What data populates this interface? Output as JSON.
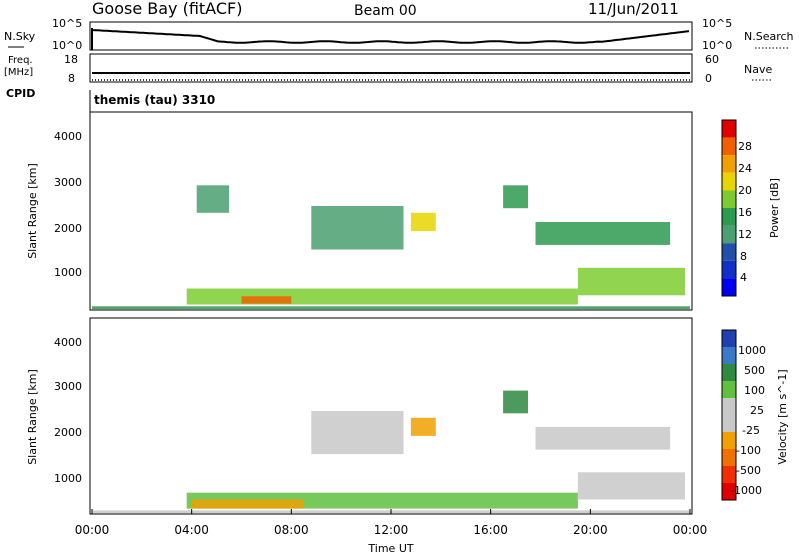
{
  "header": {
    "station": "Goose Bay (fitACF)",
    "beam": "Beam 00",
    "date": "11/Jun/2011"
  },
  "noise_panel": {
    "left_label": "N.Sky",
    "left_ticks": [
      "10^5",
      "10^0"
    ],
    "right_label": "N.Search",
    "right_ticks": [
      "10^5",
      "10^0"
    ]
  },
  "freq_panel": {
    "left_label_line1": "Freq.",
    "left_label_line2": "[MHz]",
    "left_ticks": [
      "18",
      "8"
    ],
    "right_label": "Nave",
    "right_ticks": [
      "60",
      "0"
    ]
  },
  "cpid": {
    "label": "CPID",
    "value": "themis (tau) 3310"
  },
  "chart_data": [
    {
      "type": "heatmap",
      "name": "power",
      "ylabel": "Slant Range [km]",
      "ylim": [
        180,
        4500
      ],
      "yticks": [
        "4000",
        "3000",
        "2000",
        "1000"
      ],
      "xlim": [
        "00:00",
        "24:00"
      ],
      "colorbar": {
        "label": "Power [dB]",
        "ticks": [
          "28",
          "24",
          "20",
          "16",
          "12",
          "8",
          "4"
        ],
        "colors": [
          "#e00000",
          "#f06000",
          "#f0a000",
          "#e8d400",
          "#7ccc30",
          "#2e9a50",
          "#4aa070",
          "#2050a8",
          "#1030c8",
          "#0000f0"
        ]
      },
      "echo_regions": [
        {
          "t0": 0.0,
          "t1": 24.0,
          "r0": 200,
          "r1": 260,
          "value": 8
        },
        {
          "t0": 3.8,
          "t1": 19.5,
          "r0": 300,
          "r1": 650,
          "value": 14
        },
        {
          "t0": 6.0,
          "t1": 8.0,
          "r0": 320,
          "r1": 480,
          "value": 26
        },
        {
          "t0": 8.8,
          "t1": 12.5,
          "r0": 1500,
          "r1": 2450,
          "value": 6
        },
        {
          "t0": 12.8,
          "t1": 13.8,
          "r0": 1900,
          "r1": 2300,
          "value": 18
        },
        {
          "t0": 17.8,
          "t1": 23.2,
          "r0": 1600,
          "r1": 2100,
          "value": 10
        },
        {
          "t0": 19.5,
          "t1": 23.8,
          "r0": 500,
          "r1": 1100,
          "value": 12
        },
        {
          "t0": 4.2,
          "t1": 5.5,
          "r0": 2300,
          "r1": 2900,
          "value": 6
        },
        {
          "t0": 16.5,
          "t1": 17.5,
          "r0": 2400,
          "r1": 2900,
          "value": 8
        }
      ]
    },
    {
      "type": "heatmap",
      "name": "velocity",
      "ylabel": "Slant Range [km]",
      "ylim": [
        180,
        4500
      ],
      "yticks": [
        "4000",
        "3000",
        "2000",
        "1000"
      ],
      "xlim": [
        "00:00",
        "24:00"
      ],
      "xticks": [
        "00:00",
        "04:00",
        "08:00",
        "12:00",
        "16:00",
        "20:00",
        "00:00"
      ],
      "xlabel": "Time UT",
      "colorbar": {
        "label": "Velocity [m s^-1]",
        "ticks": [
          "1000",
          "500",
          "100",
          "25",
          "-25",
          "-100",
          "-500",
          "-1000"
        ],
        "colors": [
          "#2040b0",
          "#3a78c8",
          "#2e8a40",
          "#60c040",
          "#c8c8c8",
          "#c8c8c8",
          "#f0a000",
          "#f07000",
          "#f03000",
          "#e00000"
        ]
      },
      "echo_regions": [
        {
          "t0": 0.0,
          "t1": 24.0,
          "r0": 200,
          "r1": 260,
          "value": 0
        },
        {
          "t0": 3.8,
          "t1": 19.5,
          "r0": 300,
          "r1": 650,
          "value": 80
        },
        {
          "t0": 4.0,
          "t1": 8.5,
          "r0": 300,
          "r1": 500,
          "value": -300
        },
        {
          "t0": 8.8,
          "t1": 12.5,
          "r0": 1500,
          "r1": 2450,
          "value": 0
        },
        {
          "t0": 12.8,
          "t1": 13.8,
          "r0": 1900,
          "r1": 2300,
          "value": -400
        },
        {
          "t0": 17.8,
          "t1": 23.2,
          "r0": 1600,
          "r1": 2100,
          "value": 0
        },
        {
          "t0": 19.5,
          "t1": 23.8,
          "r0": 500,
          "r1": 1100,
          "value": 0
        },
        {
          "t0": 16.5,
          "t1": 17.5,
          "r0": 2400,
          "r1": 2900,
          "value": 120
        }
      ]
    }
  ]
}
